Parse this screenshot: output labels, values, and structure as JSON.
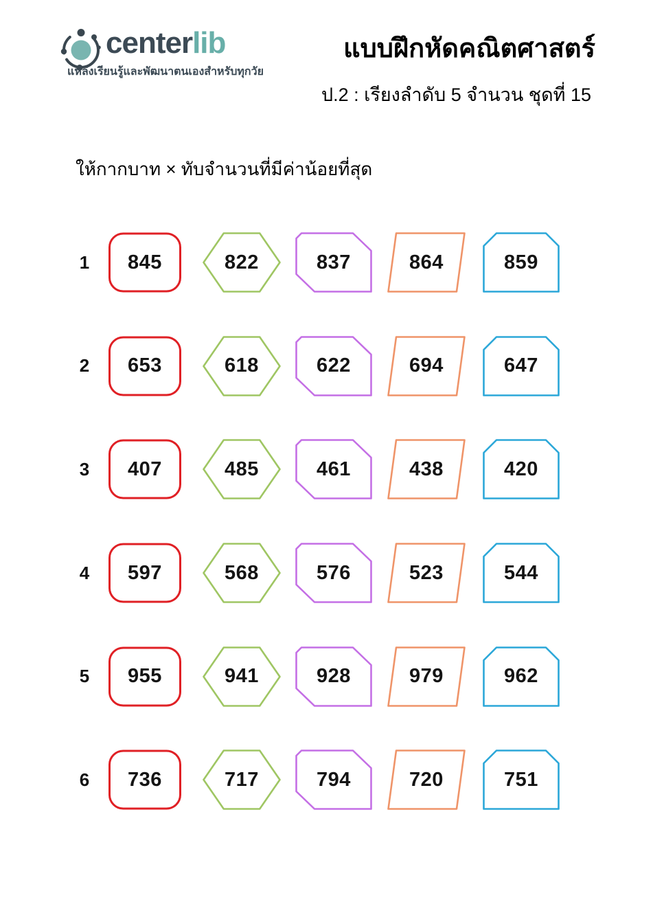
{
  "header": {
    "logo": {
      "brand_center": "center",
      "brand_lib": "lib",
      "tagline": "แหล่งเรียนรู้และพัฒนาตนเองสำหรับทุกวัย",
      "brand_center_color": "#3c4a55",
      "brand_lib_color": "#68afa9",
      "icon_teal": "#79b5b0",
      "icon_dark": "#3a4750"
    },
    "title": "แบบฝึกหัดคณิตศาสตร์",
    "subtitle": "ป.2 :  เรียงลำดับ 5 จำนวน ชุดที่ 15"
  },
  "instruction": "ให้กากบาท × ทับจำนวนที่มีค่าน้อยที่สุด",
  "worksheet": {
    "columns": [
      {
        "shape": "rounded-square",
        "color": "#e02025"
      },
      {
        "shape": "hexagon",
        "color": "#9fc663"
      },
      {
        "shape": "snip-diagonal-rect",
        "color": "#c46fe5"
      },
      {
        "shape": "parallelogram",
        "color": "#ef9469"
      },
      {
        "shape": "snip-top-rect",
        "color": "#2ba7d8"
      }
    ],
    "rows": [
      {
        "num": "1",
        "values": [
          "845",
          "822",
          "837",
          "864",
          "859"
        ]
      },
      {
        "num": "2",
        "values": [
          "653",
          "618",
          "622",
          "694",
          "647"
        ]
      },
      {
        "num": "3",
        "values": [
          "407",
          "485",
          "461",
          "438",
          "420"
        ]
      },
      {
        "num": "4",
        "values": [
          "597",
          "568",
          "576",
          "523",
          "544"
        ]
      },
      {
        "num": "5",
        "values": [
          "955",
          "941",
          "928",
          "979",
          "962"
        ]
      },
      {
        "num": "6",
        "values": [
          "736",
          "717",
          "794",
          "720",
          "751"
        ]
      }
    ]
  }
}
